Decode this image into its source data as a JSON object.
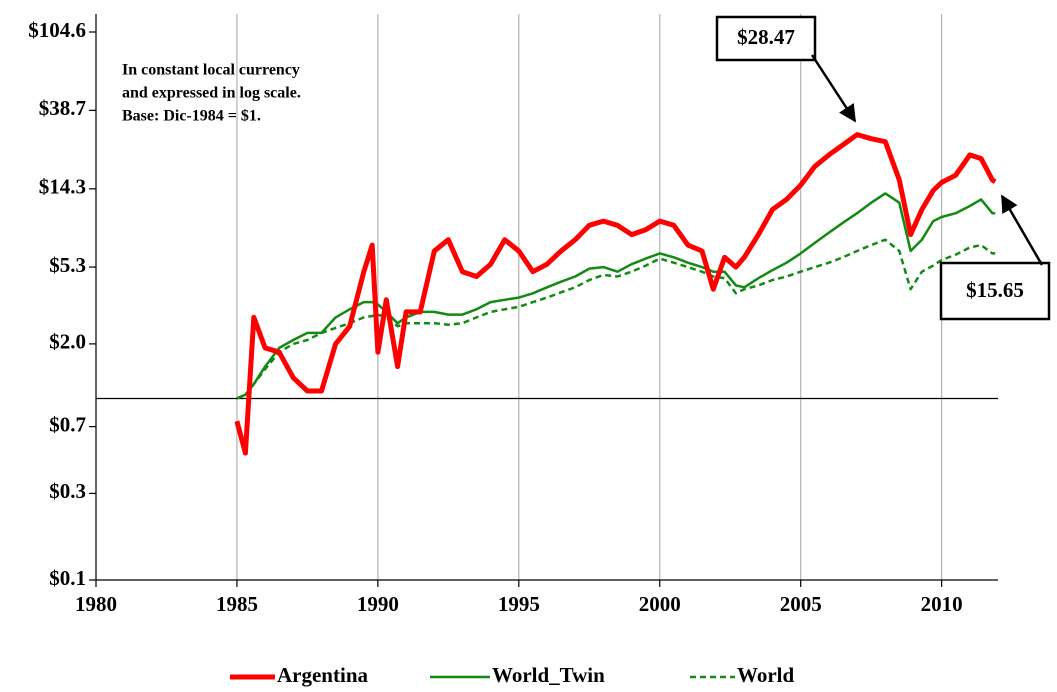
{
  "chart_data": {
    "type": "line",
    "log_scale": true,
    "grid": true,
    "annotations": [
      "In constant local currency",
      "and expressed in log scale.",
      "Base: Dic-1984 = $1."
    ],
    "callouts": [
      "$28.47",
      "$15.65"
    ],
    "reference_line": 1,
    "xlim": [
      1980,
      2012
    ],
    "xticks": [
      1980,
      1985,
      1990,
      1995,
      2000,
      2005,
      2010
    ],
    "ylim": [
      0.1,
      104.6
    ],
    "yticks": [
      {
        "value": 0.1,
        "label": "$0.1"
      },
      {
        "value": 0.3,
        "label": "$0.3"
      },
      {
        "value": 0.7,
        "label": "$0.7"
      },
      {
        "value": 2.0,
        "label": "$2.0"
      },
      {
        "value": 5.3,
        "label": "$5.3"
      },
      {
        "value": 14.3,
        "label": "$14.3"
      },
      {
        "value": 38.7,
        "label": "$38.7"
      },
      {
        "value": 104.6,
        "label": "$104.6"
      }
    ],
    "x": [
      1985.0,
      1985.3,
      1985.6,
      1986.0,
      1986.5,
      1987.0,
      1987.5,
      1988.0,
      1988.5,
      1989.0,
      1989.5,
      1989.8,
      1990.0,
      1990.3,
      1990.7,
      1991.0,
      1991.5,
      1992.0,
      1992.5,
      1993.0,
      1993.5,
      1994.0,
      1994.5,
      1995.0,
      1995.5,
      1996.0,
      1996.5,
      1997.0,
      1997.5,
      1998.0,
      1998.5,
      1999.0,
      1999.5,
      2000.0,
      2000.5,
      2001.0,
      2001.5,
      2001.9,
      2002.3,
      2002.7,
      2003.0,
      2003.5,
      2004.0,
      2004.5,
      2005.0,
      2005.5,
      2006.0,
      2006.5,
      2007.0,
      2007.5,
      2008.0,
      2008.5,
      2008.9,
      2009.3,
      2009.7,
      2010.0,
      2010.5,
      2011.0,
      2011.4,
      2011.8,
      2011.9
    ],
    "series": [
      {
        "name": "Argentina",
        "color": "#ff0000",
        "style": "solid",
        "width": 5,
        "values": [
          0.75,
          0.5,
          2.8,
          1.9,
          1.8,
          1.3,
          1.1,
          1.1,
          2.0,
          2.5,
          5.0,
          7.0,
          1.8,
          3.5,
          1.5,
          3.0,
          3.0,
          6.5,
          7.5,
          5.0,
          4.7,
          5.5,
          7.5,
          6.5,
          5.0,
          5.5,
          6.5,
          7.5,
          9.0,
          9.5,
          9.0,
          8.0,
          8.5,
          9.5,
          9.0,
          7.0,
          6.5,
          4.0,
          6.0,
          5.3,
          6.0,
          8.0,
          11,
          12.5,
          15,
          19,
          22,
          25,
          28.47,
          27,
          26,
          16,
          8.0,
          11,
          14,
          15.5,
          17,
          22,
          21,
          16,
          15.65
        ]
      },
      {
        "name": "World_Twin",
        "color": "#138a13",
        "style": "solid",
        "width": 2.5,
        "values": [
          1.0,
          1.05,
          1.2,
          1.5,
          1.9,
          2.1,
          2.3,
          2.3,
          2.8,
          3.1,
          3.4,
          3.4,
          3.3,
          3.0,
          2.6,
          2.8,
          3.0,
          3.0,
          2.9,
          2.9,
          3.1,
          3.4,
          3.5,
          3.6,
          3.8,
          4.1,
          4.4,
          4.7,
          5.2,
          5.3,
          5.0,
          5.5,
          5.9,
          6.3,
          6.0,
          5.6,
          5.3,
          5.0,
          5.0,
          4.2,
          4.1,
          4.6,
          5.1,
          5.6,
          6.3,
          7.2,
          8.2,
          9.3,
          10.5,
          12,
          13.5,
          12,
          6.5,
          7.5,
          9.5,
          10,
          10.5,
          11.5,
          12.5,
          10.5,
          10.5
        ]
      },
      {
        "name": "World",
        "color": "#138a13",
        "style": "dashed",
        "width": 2.5,
        "values": [
          1.0,
          1.05,
          1.2,
          1.45,
          1.8,
          2.0,
          2.1,
          2.3,
          2.45,
          2.6,
          2.8,
          2.85,
          2.9,
          2.8,
          2.5,
          2.6,
          2.6,
          2.6,
          2.55,
          2.6,
          2.8,
          3.0,
          3.1,
          3.2,
          3.4,
          3.6,
          3.85,
          4.1,
          4.5,
          4.8,
          4.7,
          5.0,
          5.4,
          5.9,
          5.6,
          5.3,
          5.0,
          4.7,
          4.6,
          3.8,
          4.0,
          4.2,
          4.5,
          4.7,
          5.0,
          5.3,
          5.6,
          6.0,
          6.5,
          7.0,
          7.5,
          6.5,
          4.0,
          5.0,
          5.4,
          5.8,
          6.2,
          6.8,
          7.0,
          6.3,
          6.3
        ]
      }
    ]
  }
}
